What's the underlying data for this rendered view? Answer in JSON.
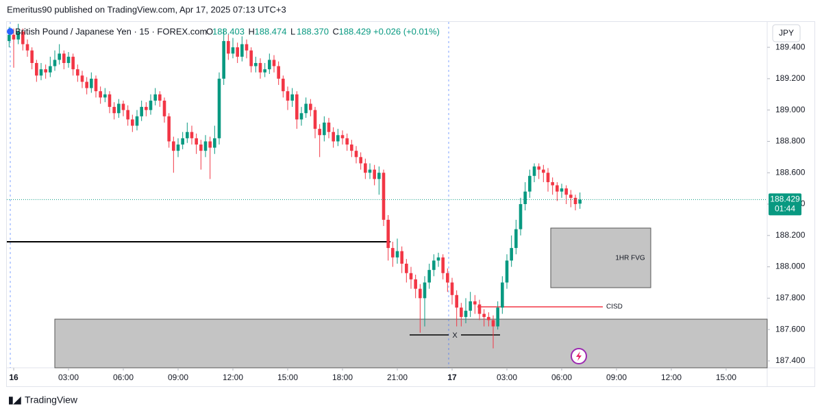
{
  "header": {
    "publisher": "Emeritus90 published on TradingView.com, Apr 17, 2025 07:13 UTC+3",
    "logo": "TradingView"
  },
  "legend": {
    "symbol": "British Pound / Japanese Yen · 15 · FOREX.com",
    "items": [
      {
        "label": "O",
        "value": "188.403"
      },
      {
        "label": "H",
        "value": "188.474"
      },
      {
        "label": "L",
        "value": "188.370"
      },
      {
        "label": "C",
        "value": "188.429"
      }
    ],
    "change": "+0.026 (+0.01%)"
  },
  "chart_data": {
    "type": "candlestick",
    "currency": "JPY",
    "up_color": "#089981",
    "down_color": "#f23645",
    "xlim": [
      -0.375,
      41.25
    ],
    "ylim": [
      187.356,
      189.562
    ],
    "xticks": [
      {
        "value": 0,
        "label": "16"
      },
      {
        "value": 3,
        "label": "03:00"
      },
      {
        "value": 6,
        "label": "06:00"
      },
      {
        "value": 9,
        "label": "09:00"
      },
      {
        "value": 12,
        "label": "12:00"
      },
      {
        "value": 15,
        "label": "15:00"
      },
      {
        "value": 18,
        "label": "18:00"
      },
      {
        "value": 21,
        "label": "21:00"
      },
      {
        "value": 24,
        "label": "17"
      },
      {
        "value": 27,
        "label": "03:00"
      },
      {
        "value": 30,
        "label": "06:00"
      },
      {
        "value": 33,
        "label": "09:00"
      },
      {
        "value": 36,
        "label": "12:00"
      },
      {
        "value": 39,
        "label": "15:00"
      }
    ],
    "yticks": [
      {
        "value": 187.4,
        "label": "187.400"
      },
      {
        "value": 187.6,
        "label": "187.600"
      },
      {
        "value": 187.8,
        "label": "187.800"
      },
      {
        "value": 188,
        "label": "188.000"
      },
      {
        "value": 188.2,
        "label": "188.200"
      },
      {
        "value": 188.4,
        "label": "188.400"
      },
      {
        "value": 188.6,
        "label": "188.600"
      },
      {
        "value": 188.8,
        "label": "188.800"
      },
      {
        "value": 189,
        "label": "189.000"
      },
      {
        "value": 189.2,
        "label": "189.200"
      },
      {
        "value": 189.4,
        "label": "189.400"
      }
    ],
    "last_price": 188.429,
    "countdown": "01:44",
    "annotations": [
      "1HR FVG",
      "CISD",
      "X"
    ],
    "x": [
      -0.25,
      0,
      0.25,
      0.5,
      0.75,
      1,
      1.25,
      1.5,
      1.75,
      2,
      2.25,
      2.5,
      2.75,
      3,
      3.25,
      3.5,
      3.75,
      4,
      4.25,
      4.5,
      4.75,
      5,
      5.25,
      5.5,
      5.75,
      6,
      6.25,
      6.5,
      6.75,
      7,
      7.25,
      7.5,
      7.75,
      8,
      8.25,
      8.5,
      8.75,
      9,
      9.25,
      9.5,
      9.75,
      10,
      10.25,
      10.5,
      10.75,
      11,
      11.25,
      11.5,
      11.75,
      12,
      12.25,
      12.5,
      12.75,
      13,
      13.25,
      13.5,
      13.75,
      14,
      14.25,
      14.5,
      14.75,
      15,
      15.25,
      15.5,
      15.75,
      16,
      16.25,
      16.5,
      16.75,
      17,
      17.25,
      17.5,
      17.75,
      18,
      18.25,
      18.5,
      18.75,
      19,
      19.25,
      19.5,
      19.75,
      20,
      20.25,
      20.5,
      20.75,
      21,
      21.25,
      21.5,
      21.75,
      22,
      22.25,
      22.5,
      22.75,
      23,
      23.25,
      23.5,
      23.75,
      24,
      24.25,
      24.5,
      24.75,
      25,
      25.25,
      25.5,
      25.75,
      26,
      26.25,
      26.5,
      26.75,
      27,
      27.25,
      27.5,
      27.75,
      28,
      28.25,
      28.5,
      28.75,
      29,
      29.25,
      29.5,
      29.75,
      30,
      30.25,
      30.5,
      30.75,
      31
    ],
    "open": [
      189.44,
      189.48,
      189.45,
      189.5,
      189.42,
      189.38,
      189.3,
      189.22,
      189.26,
      189.24,
      189.28,
      189.32,
      189.36,
      189.3,
      189.34,
      189.26,
      189.22,
      189.18,
      189.14,
      189.2,
      189.12,
      189.08,
      189.1,
      189.02,
      188.98,
      189.04,
      189.0,
      188.94,
      188.9,
      188.96,
      189.02,
      189.0,
      189.06,
      189.1,
      189.06,
      188.96,
      188.8,
      188.74,
      188.78,
      188.82,
      188.86,
      188.82,
      188.78,
      188.74,
      188.8,
      188.76,
      188.82,
      189.2,
      189.44,
      189.36,
      189.4,
      189.34,
      189.42,
      189.38,
      189.28,
      189.3,
      189.24,
      189.26,
      189.32,
      189.28,
      189.2,
      189.12,
      189.06,
      189.1,
      188.94,
      188.98,
      189.04,
      189.0,
      188.88,
      188.84,
      188.92,
      188.86,
      188.8,
      188.84,
      188.82,
      188.78,
      188.74,
      188.7,
      188.66,
      188.6,
      188.62,
      188.56,
      188.6,
      188.3,
      188.12,
      188.06,
      188.1,
      188.02,
      187.96,
      187.92,
      187.86,
      187.8,
      187.9,
      187.98,
      188.04,
      188.06,
      187.96,
      187.9,
      187.82,
      187.74,
      187.68,
      187.72,
      187.78,
      187.76,
      187.7,
      187.68,
      187.66,
      187.62,
      187.74,
      187.9,
      188.04,
      188.12,
      188.24,
      188.4,
      188.48,
      188.58,
      188.64,
      188.62,
      188.6,
      188.54,
      188.52,
      188.48,
      188.5,
      188.46,
      188.44,
      188.403
    ],
    "high": [
      189.53,
      189.52,
      189.55,
      189.52,
      189.45,
      189.4,
      189.32,
      189.3,
      189.29,
      189.34,
      189.38,
      189.42,
      189.38,
      189.37,
      189.36,
      189.29,
      189.25,
      189.21,
      189.24,
      189.22,
      189.15,
      189.14,
      189.12,
      189.05,
      189.07,
      189.06,
      189.03,
      188.97,
      189.0,
      189.06,
      189.05,
      189.1,
      189.14,
      189.12,
      189.08,
      188.98,
      188.83,
      188.82,
      188.86,
      188.92,
      188.9,
      188.85,
      188.81,
      188.84,
      188.83,
      188.9,
      189.24,
      189.52,
      189.48,
      189.46,
      189.43,
      189.47,
      189.45,
      189.4,
      189.34,
      189.33,
      189.3,
      189.36,
      189.35,
      189.31,
      189.22,
      189.15,
      189.14,
      189.12,
      189.02,
      189.08,
      189.07,
      189.02,
      188.91,
      188.96,
      188.95,
      188.89,
      188.88,
      188.87,
      188.85,
      188.81,
      188.77,
      188.73,
      188.69,
      188.66,
      188.65,
      188.64,
      188.62,
      188.33,
      188.16,
      188.18,
      188.13,
      188.05,
      188.0,
      187.95,
      187.89,
      187.94,
      188.02,
      188.08,
      188.09,
      188.08,
      187.99,
      187.93,
      187.85,
      187.77,
      187.8,
      187.84,
      187.82,
      187.79,
      187.73,
      187.71,
      187.69,
      187.78,
      187.94,
      188.08,
      188.2,
      188.3,
      188.44,
      188.54,
      188.62,
      188.66,
      188.66,
      188.65,
      188.63,
      188.57,
      188.54,
      188.53,
      188.52,
      188.49,
      188.46,
      188.474
    ],
    "low": [
      189.4,
      189.27,
      189.42,
      189.38,
      189.34,
      189.26,
      189.18,
      189.19,
      189.2,
      189.21,
      189.25,
      189.29,
      189.26,
      189.27,
      189.22,
      189.18,
      189.14,
      189.1,
      189.11,
      189.08,
      189.04,
      189.05,
      188.98,
      188.94,
      188.95,
      188.96,
      188.9,
      188.86,
      188.87,
      188.93,
      188.96,
      188.97,
      189.03,
      189.02,
      188.92,
      188.76,
      188.6,
      188.7,
      188.75,
      188.79,
      188.78,
      188.72,
      188.62,
      188.7,
      188.56,
      188.72,
      188.78,
      189.16,
      189.32,
      189.33,
      189.3,
      189.31,
      189.33,
      189.24,
      189.24,
      189.2,
      189.21,
      189.23,
      189.24,
      189.16,
      189.08,
      189.0,
      189.02,
      188.88,
      188.9,
      188.95,
      188.96,
      188.82,
      188.7,
      188.8,
      188.82,
      188.76,
      188.77,
      188.78,
      188.74,
      188.7,
      188.66,
      188.62,
      188.56,
      188.56,
      188.52,
      188.46,
      188.26,
      188.04,
      188.0,
      188.02,
      187.96,
      187.9,
      187.86,
      187.8,
      187.58,
      187.62,
      187.86,
      187.94,
      188.0,
      187.92,
      187.84,
      187.76,
      187.62,
      187.62,
      187.64,
      187.68,
      187.7,
      187.66,
      187.62,
      187.62,
      187.48,
      187.6,
      187.7,
      187.86,
      188.0,
      188.08,
      188.2,
      188.36,
      188.44,
      188.54,
      188.56,
      188.54,
      188.48,
      188.46,
      188.42,
      188.44,
      188.4,
      188.38,
      188.36,
      188.37
    ],
    "close": [
      189.48,
      189.45,
      189.5,
      189.42,
      189.38,
      189.3,
      189.22,
      189.26,
      189.24,
      189.28,
      189.32,
      189.36,
      189.3,
      189.34,
      189.26,
      189.22,
      189.18,
      189.14,
      189.2,
      189.12,
      189.08,
      189.1,
      189.02,
      188.98,
      189.04,
      189.0,
      188.94,
      188.9,
      188.96,
      189.02,
      189.0,
      189.06,
      189.1,
      189.06,
      188.96,
      188.8,
      188.74,
      188.78,
      188.82,
      188.86,
      188.82,
      188.78,
      188.74,
      188.8,
      188.76,
      188.82,
      189.2,
      189.44,
      189.36,
      189.4,
      189.34,
      189.42,
      189.38,
      189.28,
      189.3,
      189.24,
      189.26,
      189.32,
      189.28,
      189.2,
      189.12,
      189.06,
      189.1,
      188.94,
      188.98,
      189.04,
      189.0,
      188.88,
      188.84,
      188.92,
      188.86,
      188.8,
      188.84,
      188.82,
      188.78,
      188.74,
      188.7,
      188.66,
      188.6,
      188.62,
      188.56,
      188.6,
      188.3,
      188.12,
      188.06,
      188.1,
      188.02,
      187.96,
      187.92,
      187.86,
      187.8,
      187.9,
      187.98,
      188.04,
      188.06,
      187.96,
      187.9,
      187.82,
      187.74,
      187.68,
      187.72,
      187.78,
      187.76,
      187.7,
      187.68,
      187.66,
      187.62,
      187.74,
      187.9,
      188.04,
      188.12,
      188.24,
      188.4,
      188.48,
      188.58,
      188.64,
      188.62,
      188.6,
      188.54,
      188.52,
      188.48,
      188.5,
      188.46,
      188.44,
      188.4,
      188.429
    ]
  }
}
